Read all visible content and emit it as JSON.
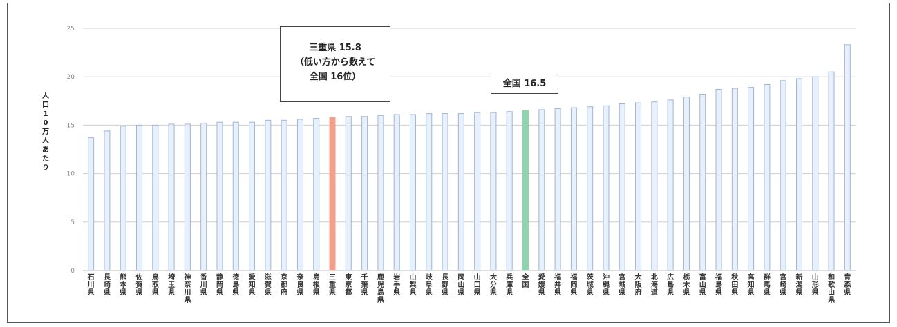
{
  "chart_data": {
    "type": "bar",
    "title": "",
    "xlabel": "",
    "ylabel": "人口10万人あたり",
    "ylim": [
      0,
      25
    ],
    "yticks": [
      "0",
      "5",
      "10",
      "15",
      "20",
      "25"
    ],
    "grid": true,
    "categories": [
      "石川県",
      "長崎県",
      "熊本県",
      "佐賀県",
      "鳥取県",
      "埼玉県",
      "神奈川県",
      "香川県",
      "静岡県",
      "徳島県",
      "愛知県",
      "滋賀県",
      "京都府",
      "奈良県",
      "島根県",
      "三重県",
      "東京都",
      "千葉県",
      "鹿児島県",
      "岩手県",
      "山梨県",
      "岐阜県",
      "長野県",
      "岡山県",
      "山口県",
      "大分県",
      "兵庫県",
      "全国",
      "愛媛県",
      "福井県",
      "福岡県",
      "茨城県",
      "沖縄県",
      "宮城県",
      "大阪府",
      "北海道",
      "広島県",
      "栃木県",
      "富山県",
      "福島県",
      "秋田県",
      "高知県",
      "群馬県",
      "宮崎県",
      "新潟県",
      "山形県",
      "和歌山県",
      "青森県"
    ],
    "values": [
      13.7,
      14.4,
      14.9,
      15.0,
      15.0,
      15.1,
      15.1,
      15.2,
      15.3,
      15.3,
      15.3,
      15.5,
      15.5,
      15.6,
      15.7,
      15.8,
      15.9,
      15.9,
      16.0,
      16.1,
      16.1,
      16.2,
      16.2,
      16.2,
      16.3,
      16.3,
      16.4,
      16.5,
      16.6,
      16.7,
      16.8,
      16.9,
      17.0,
      17.2,
      17.3,
      17.4,
      17.6,
      17.9,
      18.2,
      18.7,
      18.8,
      18.9,
      19.2,
      19.6,
      19.8,
      20.0,
      20.5,
      23.3
    ],
    "highlight": {
      "三重県": "#f3a08a",
      "全国": "#8fd4ae"
    },
    "default_color": "#e8f1fb",
    "default_stroke": "#9fb6d6",
    "annotations": {
      "mie_lines": [
        "三重県  15.8",
        "（低い方から数えて",
        "全国  16位）"
      ],
      "national": "全国  16.5"
    }
  }
}
